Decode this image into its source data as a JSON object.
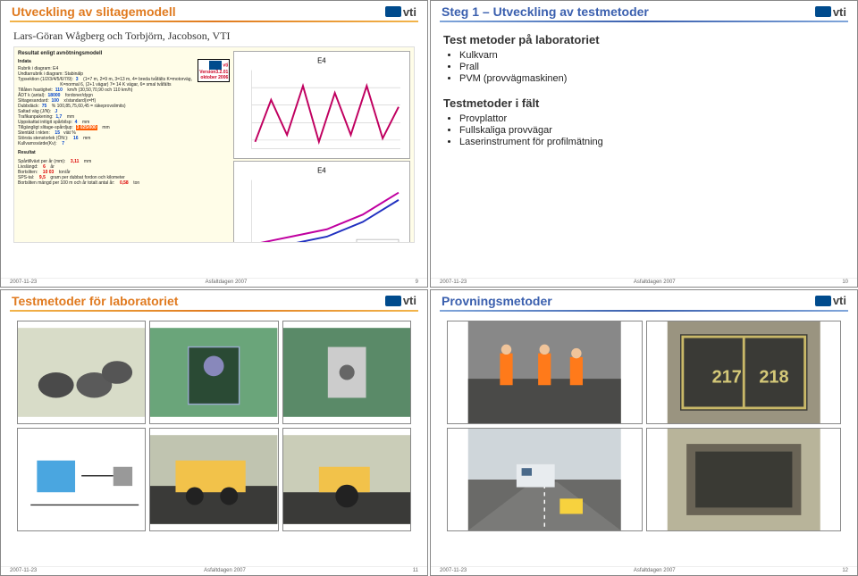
{
  "slide9": {
    "title": "Utveckling av slitagemodell",
    "subtitle": "Lars-Göran Wågberg och Torbjörn, Jacobson, VTI",
    "result_heading": "Resultat enligt avnötningsmodell",
    "indata_label": "Indata",
    "resultat_label": "Resultat",
    "version_lines": [
      "Version3.2.01",
      "oktober 2006"
    ],
    "left_lines": [
      "Rubrik i diagram: E4",
      "Undtarrubrik i diagram: Stabinälp",
      "Typsektion (1/2/3/4/5/6/7/9):  [blue]3[/blue]    (1=7 m, 2=9 m, 3=13 m, 4= breda tvåfälts K=motorväg,",
      "                                  K=normal 6, (2+1 vägar) 7= 14 K vägar, 6= smal tvåfälts",
      "Tillåten hastighet:  [blue]110[/blue]    km/h (30,50,70,90 och 110 km/h)",
      "ÅDT k (antal):  [blue]18000[/blue]    fordoner/dygn",
      "Slitagesandard:  [blue]100[/blue]    x/standard(x=H)",
      "Dubbdäck:  [blue]75[/blue]    % 100,85,75,60,45 = räkeprovslimits)",
      "Saltad väg (J/N):   [blue]J[/blue]",
      "Trafikanpakening:  [blue]1,7[/blue]    mm",
      "Uppskattat initigit spårbilsp:  [blue]4[/blue]    mm",
      "Tillgängligt slitage-spårdjup:  [hl]3 025/000[/hl]    mm",
      "Stentäkt i nkten:    [blue]15[/blue]   viät %",
      "Största stenstorlek (ÖN:):    [blue]16[/blue]    mm",
      "Kullvarnsvärde(Kv):    [blue]7[/blue]",
      "",
      "Spårtillväxt per år (mm):    [red]3,11[/red]    mm",
      "Livslängd:    [red]6[/red]    år",
      "Bortsliten:    [red]10 03[/red]    ton/år",
      "SPS-tal:    [red]9,5[/red]    gram per dubbat fordon och kilometer",
      "Bortsliten mängd per 100 m och år totalt antal år:    [red]0,58[/red]    ton"
    ],
    "chart1": {
      "title": "E4",
      "series_color": "#c00060",
      "points": [
        0.1,
        0.7,
        0.2,
        0.9,
        0.1,
        0.8,
        0.2,
        0.9,
        0.15,
        0.6
      ]
    },
    "chart2": {
      "title": "E4",
      "series": [
        {
          "color": "#c000a0",
          "vals": [
            0.2,
            0.25,
            0.3,
            0.35,
            0.4,
            0.5,
            0.6,
            0.75,
            0.9
          ]
        },
        {
          "color": "#2030c0",
          "vals": [
            0.1,
            0.15,
            0.2,
            0.25,
            0.3,
            0.4,
            0.5,
            0.65,
            0.8
          ]
        }
      ],
      "xlab": "Axlar; %"
    },
    "footer": {
      "date": "2007-11-23",
      "event": "Asfaltdagen 2007",
      "num": "9"
    }
  },
  "slide10": {
    "title": "Steg 1 – Utveckling av testmetoder",
    "h2a": "Test metoder på laboratoriet",
    "lab_items": [
      "Kulkvarn",
      "Prall",
      "PVM (provvägmaskinen)"
    ],
    "h2b": "Testmetoder i fält",
    "field_items": [
      "Provplattor",
      "Fullskaliga provvägar",
      "Laserinstrument för profilmätning"
    ],
    "footer": {
      "date": "2007-11-23",
      "event": "Asfaltdagen 2007",
      "num": "10"
    }
  },
  "slide11": {
    "title": "Testmetoder för laboratoriet",
    "photos": [
      "lab-samples",
      "prall-apparatus",
      "prall-closeup",
      "kulkvarn-schematic",
      "pvm-test-track",
      "pvm-roller"
    ],
    "footer": {
      "date": "2007-11-23",
      "event": "Asfaltdagen 2007",
      "num": "11"
    }
  },
  "slide12": {
    "title": "Provningsmetoder",
    "photos": [
      "road-workers",
      "test-plates-217-218",
      "van-laser-road",
      "sample-frame"
    ],
    "plate_labels": "217  218",
    "footer": {
      "date": "2007-11-23",
      "event": "Asfaltdagen 2007",
      "num": "12"
    }
  },
  "colors": {
    "orange": "#e07a1f",
    "blue": "#3a5fae",
    "yellow_bg": "#fffde8"
  }
}
